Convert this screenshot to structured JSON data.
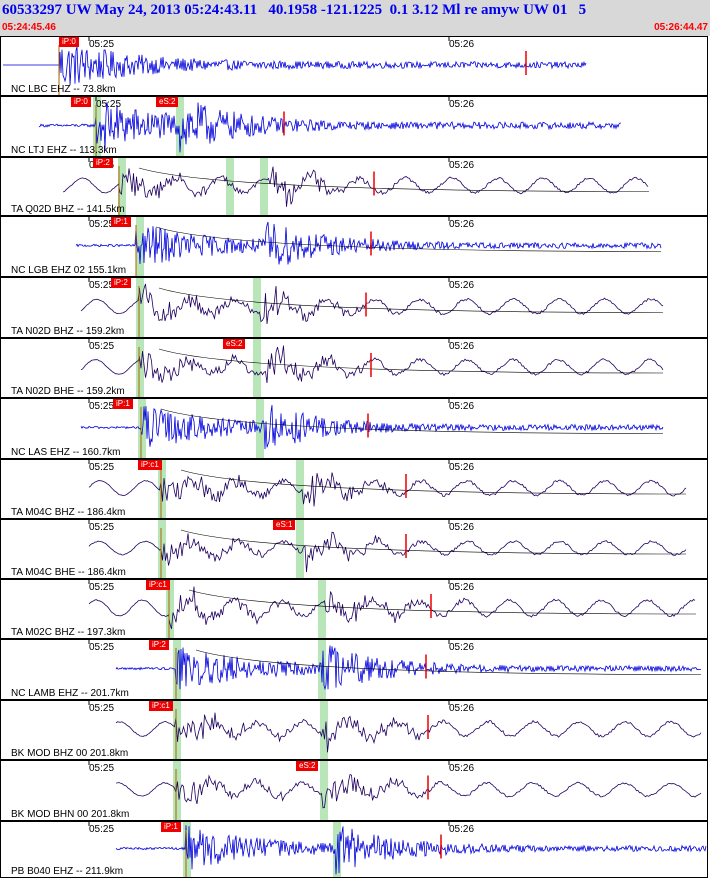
{
  "header": {
    "title": "60533297 UW May 24, 2013 05:24:43.11   40.1958 -121.1225  0.1 3.12 Ml re amyw UW 01   5",
    "start_time": "05:24:45.46",
    "end_time": "05:26:44.47"
  },
  "colors": {
    "trace_blue": "#0000dd",
    "trace_purple": "#200060",
    "pick_red": "#ee0000",
    "window_green": "#b8e6b8",
    "header_bg": "#d8d8d8"
  },
  "panels": [
    {
      "label": "NC LBC EHZ -- 73.8km",
      "ticks": [
        "05:25",
        "05:26"
      ],
      "color": "blue",
      "picks": [
        {
          "text": "iP:0"
        }
      ]
    },
    {
      "label": "NC LTJ EHZ -- 113.3km",
      "ticks": [
        "05:25",
        "05:26"
      ],
      "color": "blue",
      "picks": [
        {
          "text": "iP:0"
        },
        {
          "text": "eS:2"
        }
      ]
    },
    {
      "label": "TA Q02D BHZ -- 141.5km",
      "ticks": [
        "05:25",
        "05:26"
      ],
      "color": "purple",
      "picks": [
        {
          "text": "iP:2"
        }
      ]
    },
    {
      "label": "NC LGB EHZ 02 155.1km",
      "ticks": [
        "05:25",
        "05:26"
      ],
      "color": "blue",
      "picks": [
        {
          "text": "iP:1"
        }
      ]
    },
    {
      "label": "TA N02D BHZ -- 159.2km",
      "ticks": [
        "05:25",
        "05:26"
      ],
      "color": "purple",
      "picks": [
        {
          "text": "iP:2"
        }
      ]
    },
    {
      "label": "TA N02D BHE -- 159.2km",
      "ticks": [
        "05:25",
        "05:26"
      ],
      "color": "purple",
      "picks": [
        {
          "text": "eS:2"
        }
      ]
    },
    {
      "label": "NC LAS EHZ -- 160.7km",
      "ticks": [
        "05:25",
        "05:26"
      ],
      "color": "blue",
      "picks": [
        {
          "text": "iP:1"
        }
      ]
    },
    {
      "label": "TA M04C BHZ -- 186.4km",
      "ticks": [
        "05:25",
        "05:26"
      ],
      "color": "purple",
      "picks": [
        {
          "text": "iP:c1"
        }
      ]
    },
    {
      "label": "TA M04C BHE -- 186.4km",
      "ticks": [
        "05:25",
        "05:26"
      ],
      "color": "purple",
      "picks": [
        {
          "text": "eS:1"
        }
      ]
    },
    {
      "label": "TA M02C BHZ -- 197.3km",
      "ticks": [
        "05:25",
        "05:26"
      ],
      "color": "purple",
      "picks": [
        {
          "text": "iP:c1"
        }
      ]
    },
    {
      "label": "NC LAMB EHZ -- 201.7km",
      "ticks": [
        "05:25",
        "05:26"
      ],
      "color": "blue",
      "picks": [
        {
          "text": "iP:2"
        }
      ]
    },
    {
      "label": "BK MOD BHZ 00 201.8km",
      "ticks": [
        "05:25",
        "05:26"
      ],
      "color": "purple",
      "picks": [
        {
          "text": "iP:c1"
        }
      ]
    },
    {
      "label": "BK MOD BHN 00 201.8km",
      "ticks": [
        "05:25",
        "05:26"
      ],
      "color": "purple",
      "picks": [
        {
          "text": "eS:2"
        }
      ]
    },
    {
      "label": "PB B040 EHZ -- 211.9km",
      "ticks": [
        "05:25",
        "05:26"
      ],
      "color": "blue",
      "picks": [
        {
          "text": "iP:1"
        }
      ]
    }
  ]
}
